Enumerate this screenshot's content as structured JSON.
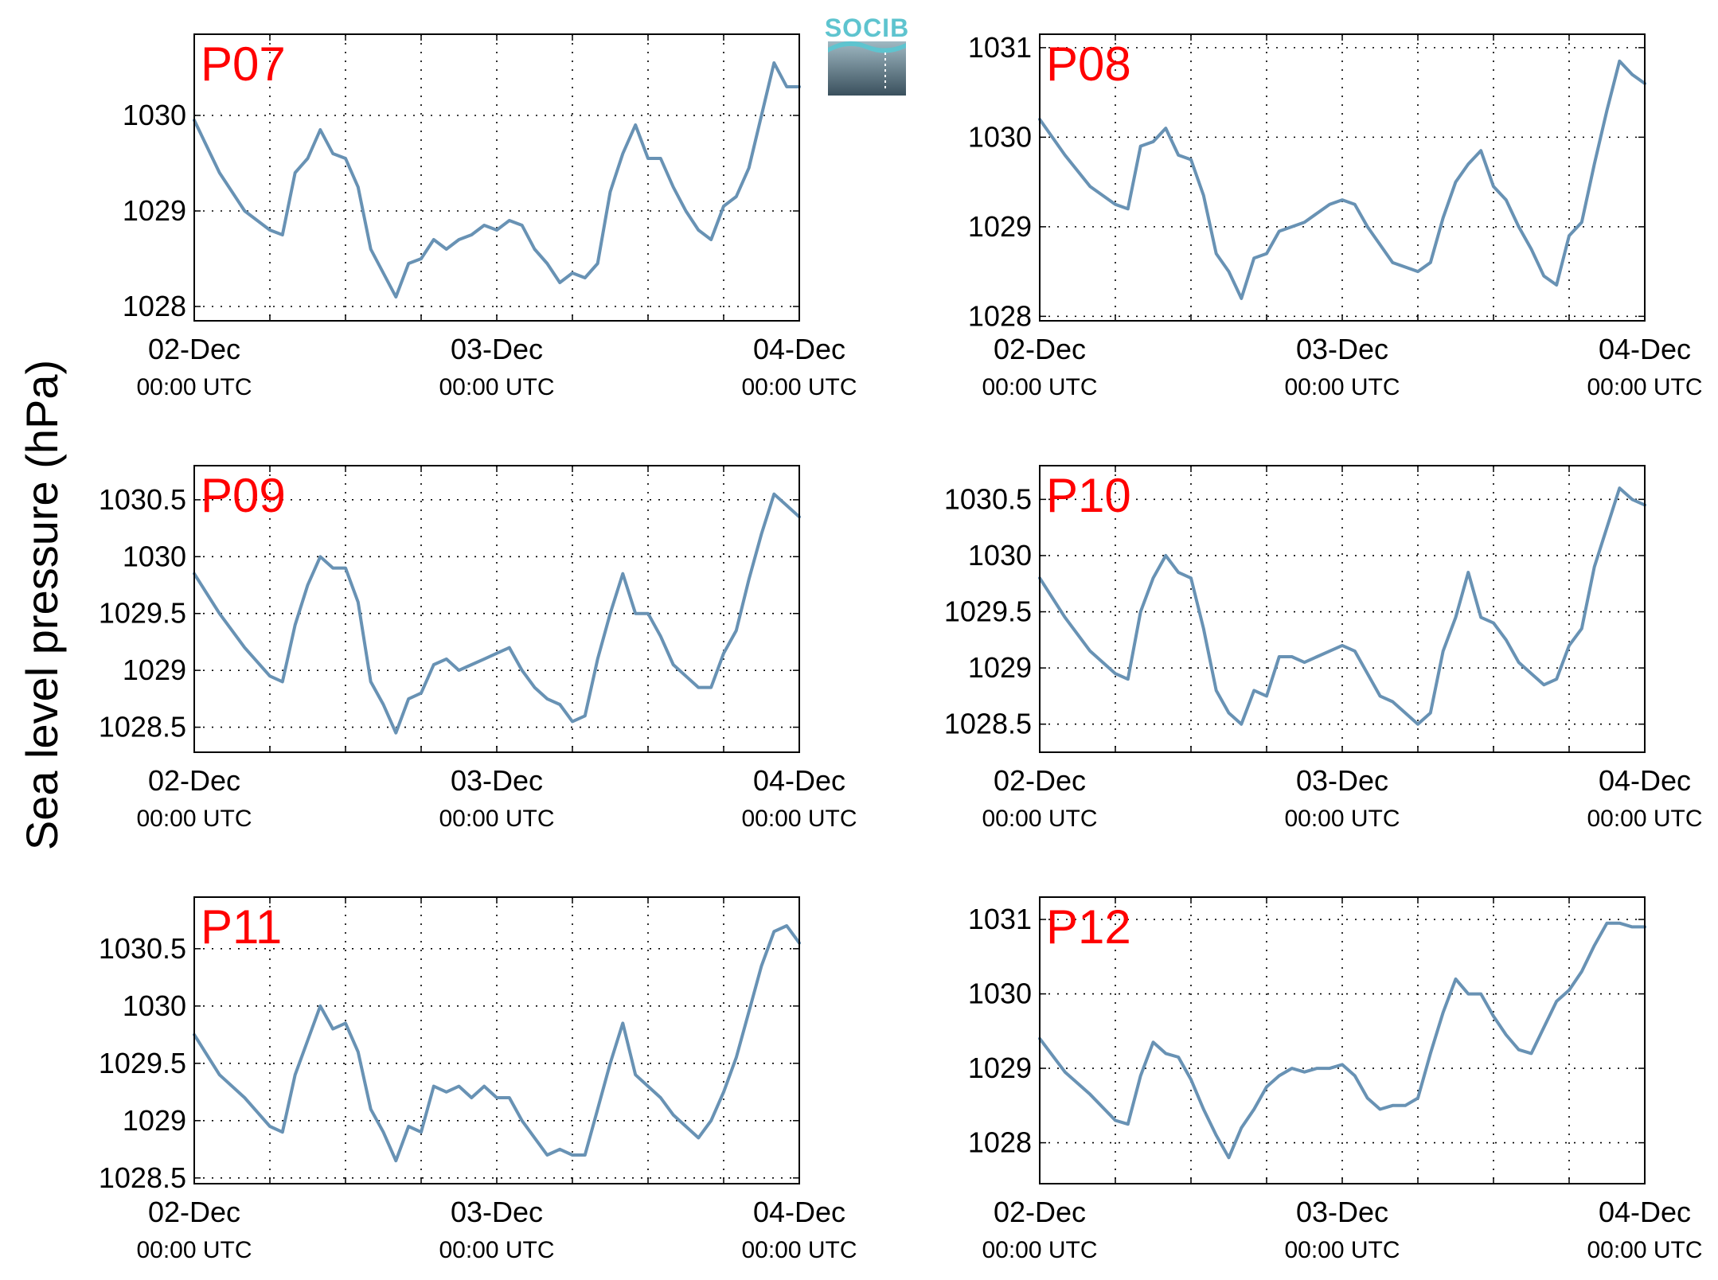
{
  "figure": {
    "ylabel": "Sea level pressure (hPa)",
    "logo_text": "SOCIB",
    "line_color": "#6892b4",
    "label_color": "#ff0000"
  },
  "chart_data": [
    {
      "type": "line",
      "title": "P07",
      "xticks": [
        {
          "date": "02-Dec",
          "time": "00:00 UTC"
        },
        {
          "date": "03-Dec",
          "time": "00:00 UTC"
        },
        {
          "date": "04-Dec",
          "time": "00:00 UTC"
        }
      ],
      "xlim": [
        0,
        48
      ],
      "ylim": [
        1027.85,
        1030.85
      ],
      "yticks": [
        1028,
        1029,
        1030
      ],
      "ytick_labels": [
        "1028",
        "1029",
        "1030"
      ],
      "series": [
        {
          "x": [
            0,
            2,
            4,
            6,
            7,
            8,
            9,
            10,
            11,
            12,
            13,
            14,
            15,
            16,
            17,
            18,
            19,
            20,
            21,
            22,
            23,
            24,
            25,
            26,
            27,
            28,
            29,
            30,
            31,
            32,
            33,
            34,
            35,
            36,
            37,
            38,
            39,
            40,
            41,
            42,
            43,
            44,
            45,
            46,
            47,
            48
          ],
          "y": [
            1029.95,
            1029.4,
            1029.0,
            1028.8,
            1028.75,
            1029.4,
            1029.55,
            1029.85,
            1029.6,
            1029.55,
            1029.25,
            1028.6,
            1028.35,
            1028.1,
            1028.45,
            1028.5,
            1028.7,
            1028.6,
            1028.7,
            1028.75,
            1028.85,
            1028.8,
            1028.9,
            1028.85,
            1028.6,
            1028.45,
            1028.25,
            1028.35,
            1028.3,
            1028.45,
            1029.2,
            1029.6,
            1029.9,
            1029.55,
            1029.55,
            1029.25,
            1029.0,
            1028.8,
            1028.7,
            1029.05,
            1029.15,
            1029.45,
            1030.0,
            1030.55,
            1030.3,
            1030.3
          ]
        }
      ]
    },
    {
      "type": "line",
      "title": "P08",
      "xticks": [
        {
          "date": "02-Dec",
          "time": "00:00 UTC"
        },
        {
          "date": "03-Dec",
          "time": "00:00 UTC"
        },
        {
          "date": "04-Dec",
          "time": "00:00 UTC"
        }
      ],
      "xlim": [
        0,
        48
      ],
      "ylim": [
        1027.95,
        1031.15
      ],
      "yticks": [
        1028,
        1029,
        1030,
        1031
      ],
      "ytick_labels": [
        "1028",
        "1029",
        "1030",
        "1031"
      ],
      "series": [
        {
          "x": [
            0,
            2,
            4,
            6,
            7,
            8,
            9,
            10,
            11,
            12,
            13,
            14,
            15,
            16,
            17,
            18,
            19,
            20,
            21,
            22,
            23,
            24,
            25,
            26,
            27,
            28,
            29,
            30,
            31,
            32,
            33,
            34,
            35,
            36,
            37,
            38,
            39,
            40,
            41,
            42,
            43,
            44,
            45,
            46,
            47,
            48
          ],
          "y": [
            1030.2,
            1029.8,
            1029.45,
            1029.25,
            1029.2,
            1029.9,
            1029.95,
            1030.1,
            1029.8,
            1029.75,
            1029.35,
            1028.7,
            1028.5,
            1028.2,
            1028.65,
            1028.7,
            1028.95,
            1029.0,
            1029.05,
            1029.15,
            1029.25,
            1029.3,
            1029.25,
            1029.0,
            1028.8,
            1028.6,
            1028.55,
            1028.5,
            1028.6,
            1029.1,
            1029.5,
            1029.7,
            1029.85,
            1029.45,
            1029.3,
            1029.0,
            1028.75,
            1028.45,
            1028.35,
            1028.9,
            1029.05,
            1029.7,
            1030.3,
            1030.85,
            1030.7,
            1030.6
          ]
        }
      ]
    },
    {
      "type": "line",
      "title": "P09",
      "xticks": [
        {
          "date": "02-Dec",
          "time": "00:00 UTC"
        },
        {
          "date": "03-Dec",
          "time": "00:00 UTC"
        },
        {
          "date": "04-Dec",
          "time": "00:00 UTC"
        }
      ],
      "xlim": [
        0,
        48
      ],
      "ylim": [
        1028.28,
        1030.8
      ],
      "yticks": [
        1028.5,
        1029,
        1029.5,
        1030,
        1030.5
      ],
      "ytick_labels": [
        "1028.5",
        "1029",
        "1029.5",
        "1030",
        "1030.5"
      ],
      "series": [
        {
          "x": [
            0,
            2,
            4,
            6,
            7,
            8,
            9,
            10,
            11,
            12,
            13,
            14,
            15,
            16,
            17,
            18,
            19,
            20,
            21,
            22,
            23,
            24,
            25,
            26,
            27,
            28,
            29,
            30,
            31,
            32,
            33,
            34,
            35,
            36,
            37,
            38,
            39,
            40,
            41,
            42,
            43,
            44,
            45,
            46,
            47,
            48
          ],
          "y": [
            1029.85,
            1029.5,
            1029.2,
            1028.95,
            1028.9,
            1029.4,
            1029.75,
            1030.0,
            1029.9,
            1029.9,
            1029.6,
            1028.9,
            1028.7,
            1028.45,
            1028.75,
            1028.8,
            1029.05,
            1029.1,
            1029.0,
            1029.05,
            1029.1,
            1029.15,
            1029.2,
            1029.0,
            1028.85,
            1028.75,
            1028.7,
            1028.55,
            1028.6,
            1029.1,
            1029.5,
            1029.85,
            1029.5,
            1029.5,
            1029.3,
            1029.05,
            1028.95,
            1028.85,
            1028.85,
            1029.15,
            1029.35,
            1029.8,
            1030.2,
            1030.55,
            1030.45,
            1030.35
          ]
        }
      ]
    },
    {
      "type": "line",
      "title": "P10",
      "xticks": [
        {
          "date": "02-Dec",
          "time": "00:00 UTC"
        },
        {
          "date": "03-Dec",
          "time": "00:00 UTC"
        },
        {
          "date": "04-Dec",
          "time": "00:00 UTC"
        }
      ],
      "xlim": [
        0,
        48
      ],
      "ylim": [
        1028.25,
        1030.8
      ],
      "yticks": [
        1028.5,
        1029,
        1029.5,
        1030,
        1030.5
      ],
      "ytick_labels": [
        "1028.5",
        "1029",
        "1029.5",
        "1030",
        "1030.5"
      ],
      "series": [
        {
          "x": [
            0,
            2,
            4,
            6,
            7,
            8,
            9,
            10,
            11,
            12,
            13,
            14,
            15,
            16,
            17,
            18,
            19,
            20,
            21,
            22,
            23,
            24,
            25,
            26,
            27,
            28,
            29,
            30,
            31,
            32,
            33,
            34,
            35,
            36,
            37,
            38,
            39,
            40,
            41,
            42,
            43,
            44,
            45,
            46,
            47,
            48
          ],
          "y": [
            1029.8,
            1029.45,
            1029.15,
            1028.95,
            1028.9,
            1029.5,
            1029.8,
            1030.0,
            1029.85,
            1029.8,
            1029.35,
            1028.8,
            1028.6,
            1028.5,
            1028.8,
            1028.75,
            1029.1,
            1029.1,
            1029.05,
            1029.1,
            1029.15,
            1029.2,
            1029.15,
            1028.95,
            1028.75,
            1028.7,
            1028.6,
            1028.5,
            1028.6,
            1029.15,
            1029.45,
            1029.85,
            1029.45,
            1029.4,
            1029.25,
            1029.05,
            1028.95,
            1028.85,
            1028.9,
            1029.2,
            1029.35,
            1029.9,
            1030.25,
            1030.6,
            1030.5,
            1030.45
          ]
        }
      ]
    },
    {
      "type": "line",
      "title": "P11",
      "xticks": [
        {
          "date": "02-Dec",
          "time": "00:00 UTC"
        },
        {
          "date": "03-Dec",
          "time": "00:00 UTC"
        },
        {
          "date": "04-Dec",
          "time": "00:00 UTC"
        }
      ],
      "xlim": [
        0,
        48
      ],
      "ylim": [
        1028.45,
        1030.95
      ],
      "yticks": [
        1028.5,
        1029,
        1029.5,
        1030,
        1030.5
      ],
      "ytick_labels": [
        "1028.5",
        "1029",
        "1029.5",
        "1030",
        "1030.5"
      ],
      "series": [
        {
          "x": [
            0,
            2,
            4,
            6,
            7,
            8,
            9,
            10,
            11,
            12,
            13,
            14,
            15,
            16,
            17,
            18,
            19,
            20,
            21,
            22,
            23,
            24,
            25,
            26,
            27,
            28,
            29,
            30,
            31,
            32,
            33,
            34,
            35,
            36,
            37,
            38,
            39,
            40,
            41,
            42,
            43,
            44,
            45,
            46,
            47,
            48
          ],
          "y": [
            1029.75,
            1029.4,
            1029.2,
            1028.95,
            1028.9,
            1029.4,
            1029.7,
            1030.0,
            1029.8,
            1029.85,
            1029.6,
            1029.1,
            1028.9,
            1028.65,
            1028.95,
            1028.9,
            1029.3,
            1029.25,
            1029.3,
            1029.2,
            1029.3,
            1029.2,
            1029.2,
            1029.0,
            1028.85,
            1028.7,
            1028.75,
            1028.7,
            1028.7,
            1029.1,
            1029.5,
            1029.85,
            1029.4,
            1029.3,
            1029.2,
            1029.05,
            1028.95,
            1028.85,
            1029.0,
            1029.25,
            1029.55,
            1029.95,
            1030.35,
            1030.65,
            1030.7,
            1030.55
          ]
        }
      ]
    },
    {
      "type": "line",
      "title": "P12",
      "xticks": [
        {
          "date": "02-Dec",
          "time": "00:00 UTC"
        },
        {
          "date": "03-Dec",
          "time": "00:00 UTC"
        },
        {
          "date": "04-Dec",
          "time": "00:00 UTC"
        }
      ],
      "xlim": [
        0,
        48
      ],
      "ylim": [
        1027.45,
        1031.3
      ],
      "yticks": [
        1028,
        1029,
        1030,
        1031
      ],
      "ytick_labels": [
        "1028",
        "1029",
        "1030",
        "1031"
      ],
      "series": [
        {
          "x": [
            0,
            2,
            4,
            6,
            7,
            8,
            9,
            10,
            11,
            12,
            13,
            14,
            15,
            16,
            17,
            18,
            19,
            20,
            21,
            22,
            23,
            24,
            25,
            26,
            27,
            28,
            29,
            30,
            31,
            32,
            33,
            34,
            35,
            36,
            37,
            38,
            39,
            40,
            41,
            42,
            43,
            44,
            45,
            46,
            47,
            48
          ],
          "y": [
            1029.4,
            1028.95,
            1028.65,
            1028.3,
            1028.25,
            1028.9,
            1029.35,
            1029.2,
            1029.15,
            1028.85,
            1028.45,
            1028.1,
            1027.8,
            1028.2,
            1028.45,
            1028.75,
            1028.9,
            1029.0,
            1028.95,
            1029.0,
            1029.0,
            1029.05,
            1028.9,
            1028.6,
            1028.45,
            1028.5,
            1028.5,
            1028.6,
            1029.2,
            1029.75,
            1030.2,
            1030.0,
            1030.0,
            1029.7,
            1029.45,
            1029.25,
            1029.2,
            1029.55,
            1029.9,
            1030.05,
            1030.3,
            1030.65,
            1030.95,
            1030.95,
            1030.9,
            1030.9
          ]
        }
      ]
    }
  ]
}
